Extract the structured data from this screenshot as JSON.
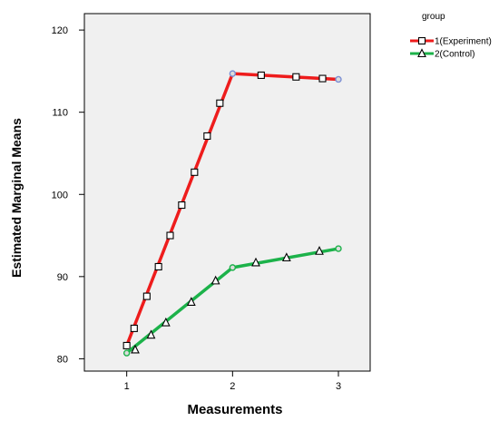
{
  "chart_data": {
    "type": "line",
    "xlabel": "Measurements",
    "ylabel": "Estimated Marginal Means",
    "xlim": [
      0.6,
      3.3
    ],
    "ylim": [
      78.5,
      122
    ],
    "x_ticks": [
      1,
      2,
      3
    ],
    "x_tick_labels": [
      "1",
      "2",
      "3"
    ],
    "y_ticks": [
      80,
      90,
      100,
      110,
      120
    ],
    "y_tick_labels": [
      "80",
      "90",
      "100",
      "110",
      "120"
    ],
    "grid": false,
    "background_color": "#f0f0f0",
    "legend": {
      "title": "group",
      "placement": "top-right, outside plot"
    },
    "series": [
      {
        "name": "1(Experiment)",
        "color": "#ee1c1c",
        "marker": "square",
        "endpoint_color": "#7b8fd4",
        "endpoints": [
          {
            "x": 1,
            "y": 81.6
          },
          {
            "x": 2,
            "y": 114.7
          },
          {
            "x": 3,
            "y": 114.0
          }
        ],
        "marker_points": [
          {
            "x": 1.0,
            "y": 81.6
          },
          {
            "x": 1.07,
            "y": 83.7
          },
          {
            "x": 1.19,
            "y": 87.6
          },
          {
            "x": 1.3,
            "y": 91.2
          },
          {
            "x": 1.41,
            "y": 95.0
          },
          {
            "x": 1.52,
            "y": 98.7
          },
          {
            "x": 1.64,
            "y": 102.7
          },
          {
            "x": 1.76,
            "y": 107.1
          },
          {
            "x": 1.88,
            "y": 111.1
          },
          {
            "x": 2.27,
            "y": 114.5
          },
          {
            "x": 2.6,
            "y": 114.3
          },
          {
            "x": 2.85,
            "y": 114.1
          }
        ]
      },
      {
        "name": "2(Control)",
        "color": "#1cb24a",
        "marker": "triangle",
        "endpoint_color": "#1cb24a",
        "endpoints": [
          {
            "x": 1,
            "y": 80.7
          },
          {
            "x": 2,
            "y": 91.1
          },
          {
            "x": 3,
            "y": 93.4
          }
        ],
        "marker_points": [
          {
            "x": 1.08,
            "y": 81.1
          },
          {
            "x": 1.23,
            "y": 82.9
          },
          {
            "x": 1.37,
            "y": 84.4
          },
          {
            "x": 1.61,
            "y": 86.9
          },
          {
            "x": 1.84,
            "y": 89.5
          },
          {
            "x": 2.22,
            "y": 91.7
          },
          {
            "x": 2.51,
            "y": 92.3
          },
          {
            "x": 2.82,
            "y": 93.1
          }
        ]
      }
    ]
  }
}
